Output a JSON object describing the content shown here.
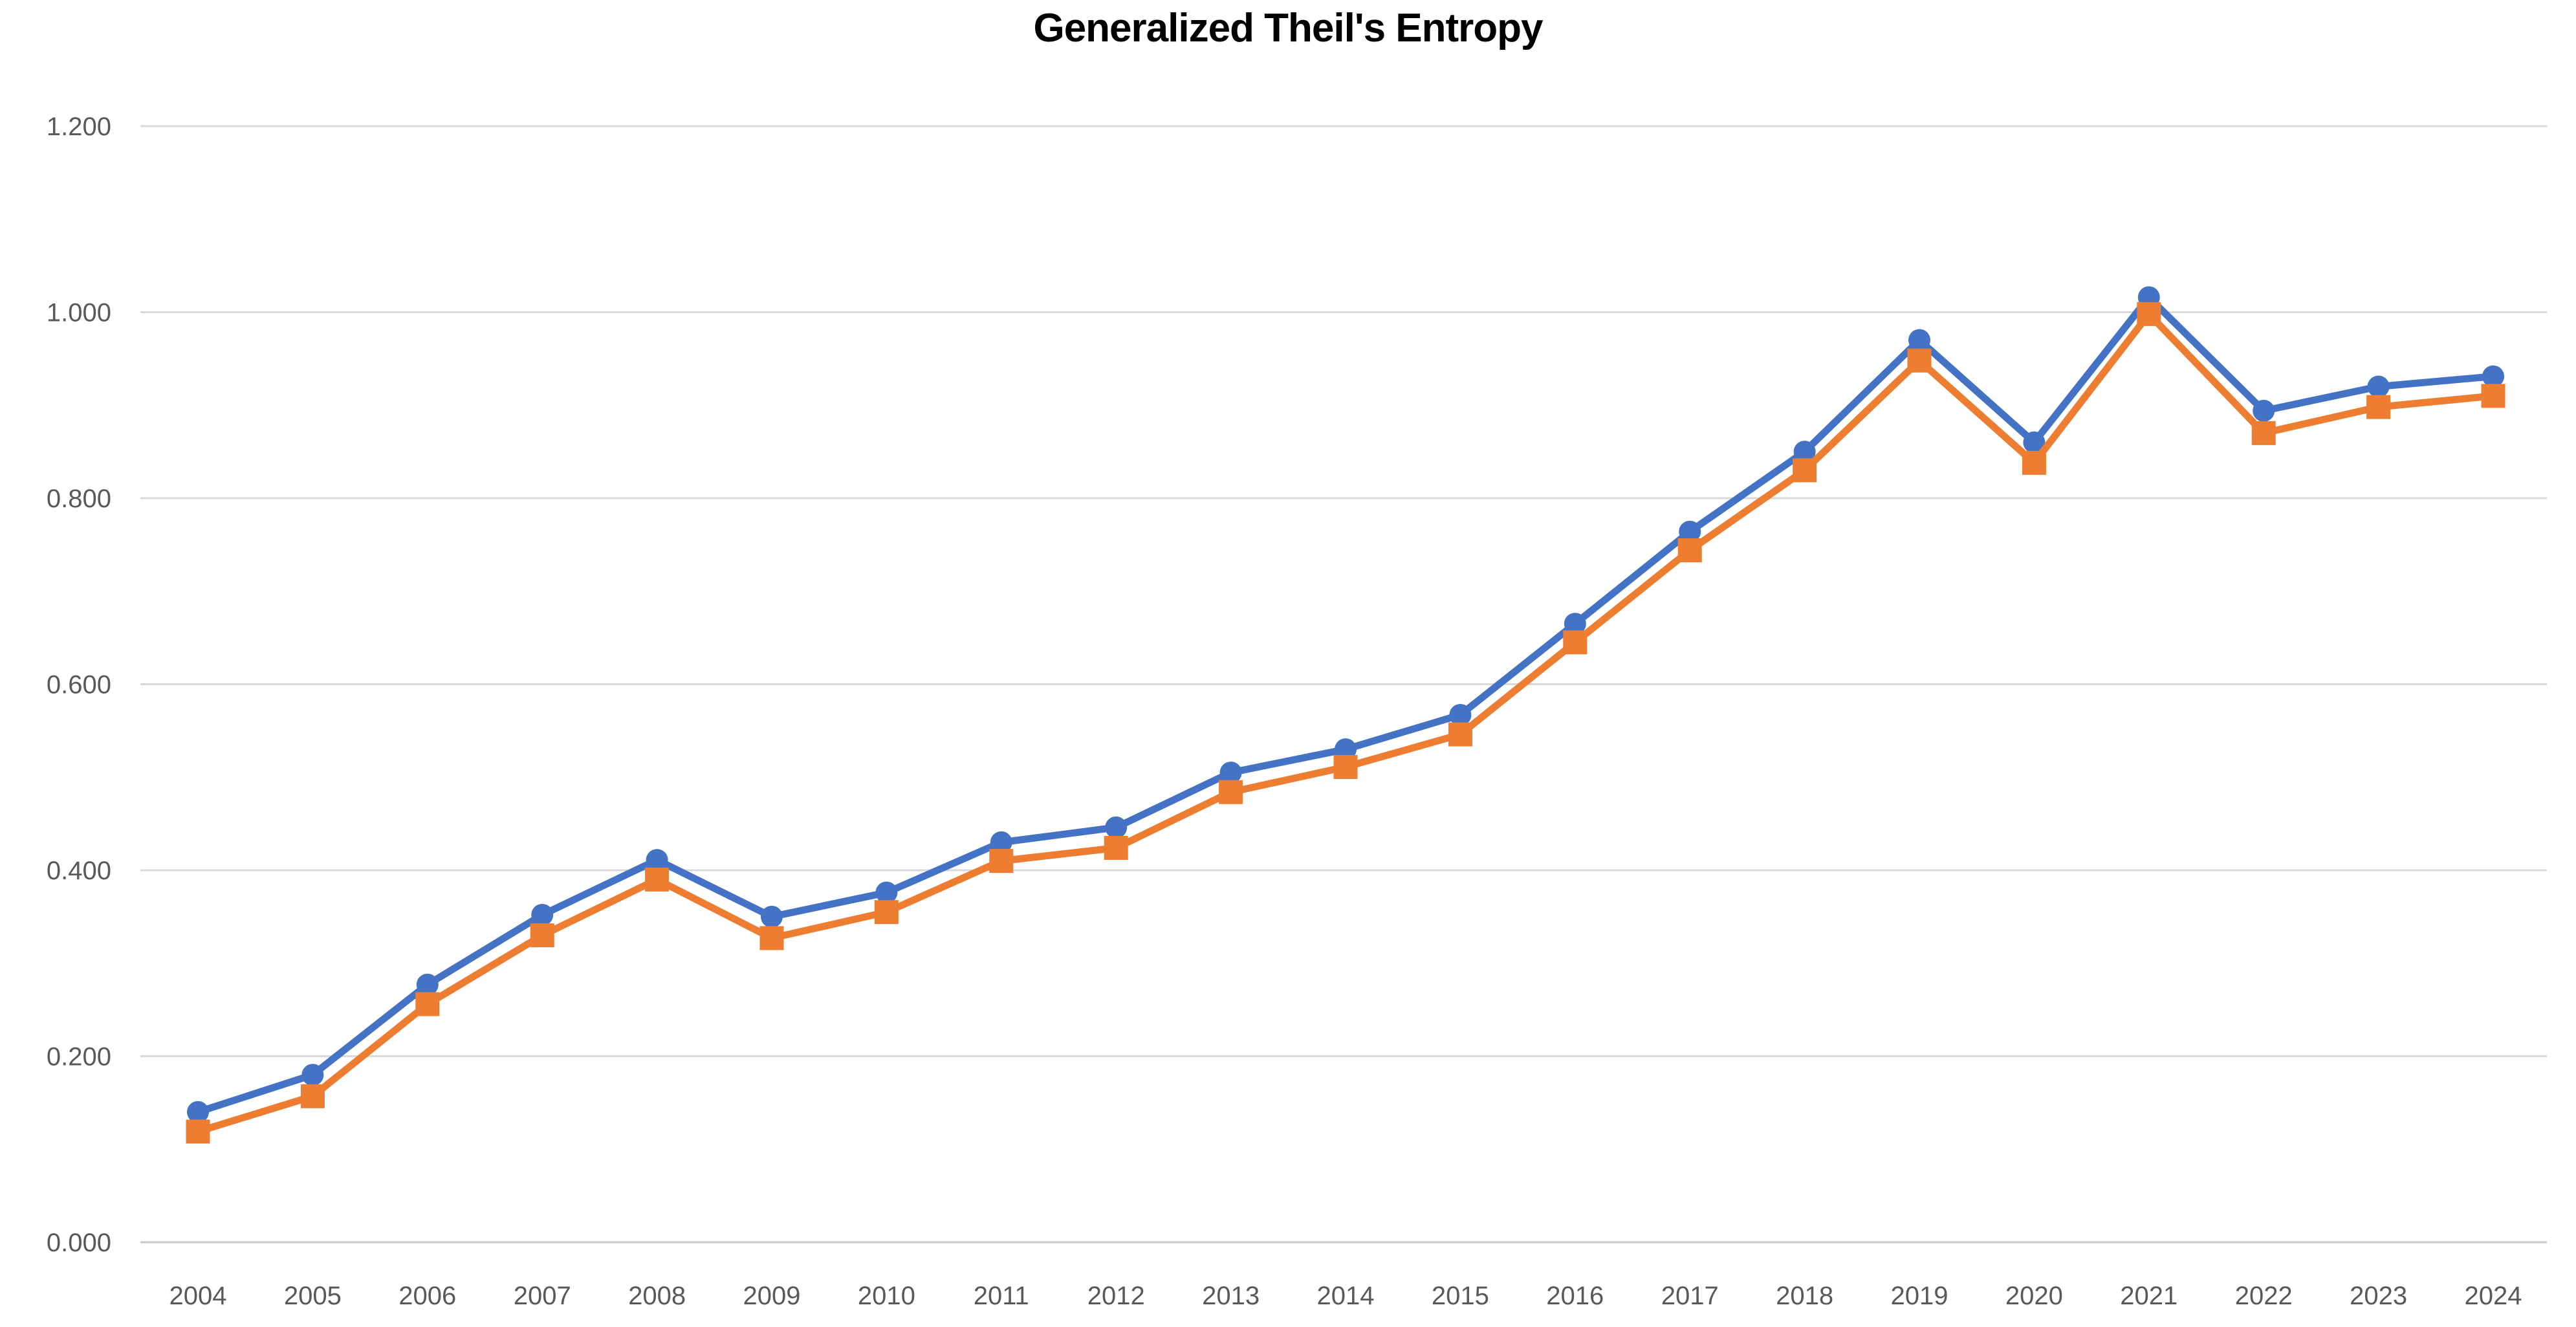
{
  "chart_data": {
    "type": "line",
    "title": "Generalized Theil's Entropy",
    "categories": [
      "2004",
      "2005",
      "2006",
      "2007",
      "2008",
      "2009",
      "2010",
      "2011",
      "2012",
      "2013",
      "2014",
      "2015",
      "2016",
      "2017",
      "2018",
      "2019",
      "2020",
      "2021",
      "2022",
      "2023",
      "2024"
    ],
    "series": [
      {
        "id": "series-1",
        "marker": "circle",
        "color": "#4472C4",
        "values": [
          0.14,
          0.18,
          0.277,
          0.352,
          0.411,
          0.35,
          0.376,
          0.43,
          0.446,
          0.505,
          0.53,
          0.567,
          0.665,
          0.764,
          0.85,
          0.97,
          0.86,
          1.016,
          0.894,
          0.92,
          0.931
        ]
      },
      {
        "id": "series-2",
        "marker": "square",
        "color": "#ED7D31",
        "values": [
          0.119,
          0.157,
          0.256,
          0.33,
          0.39,
          0.327,
          0.355,
          0.41,
          0.424,
          0.484,
          0.511,
          0.546,
          0.645,
          0.744,
          0.83,
          0.948,
          0.838,
          0.998,
          0.87,
          0.898,
          0.91
        ]
      }
    ],
    "xlabel": "",
    "ylabel": "",
    "ylim": [
      0,
      1.2
    ],
    "ytick_step": 0.2,
    "ytick_labels": [
      "0.000",
      "0.200",
      "0.400",
      "0.600",
      "0.800",
      "1.000",
      "1.200"
    ],
    "grid": "horizontal",
    "legend": "none",
    "colors": {
      "gridline": "#D9D9D9",
      "axis_line": "#C6C6C6",
      "tick_text": "#595959",
      "background": "#FFFFFF"
    }
  }
}
